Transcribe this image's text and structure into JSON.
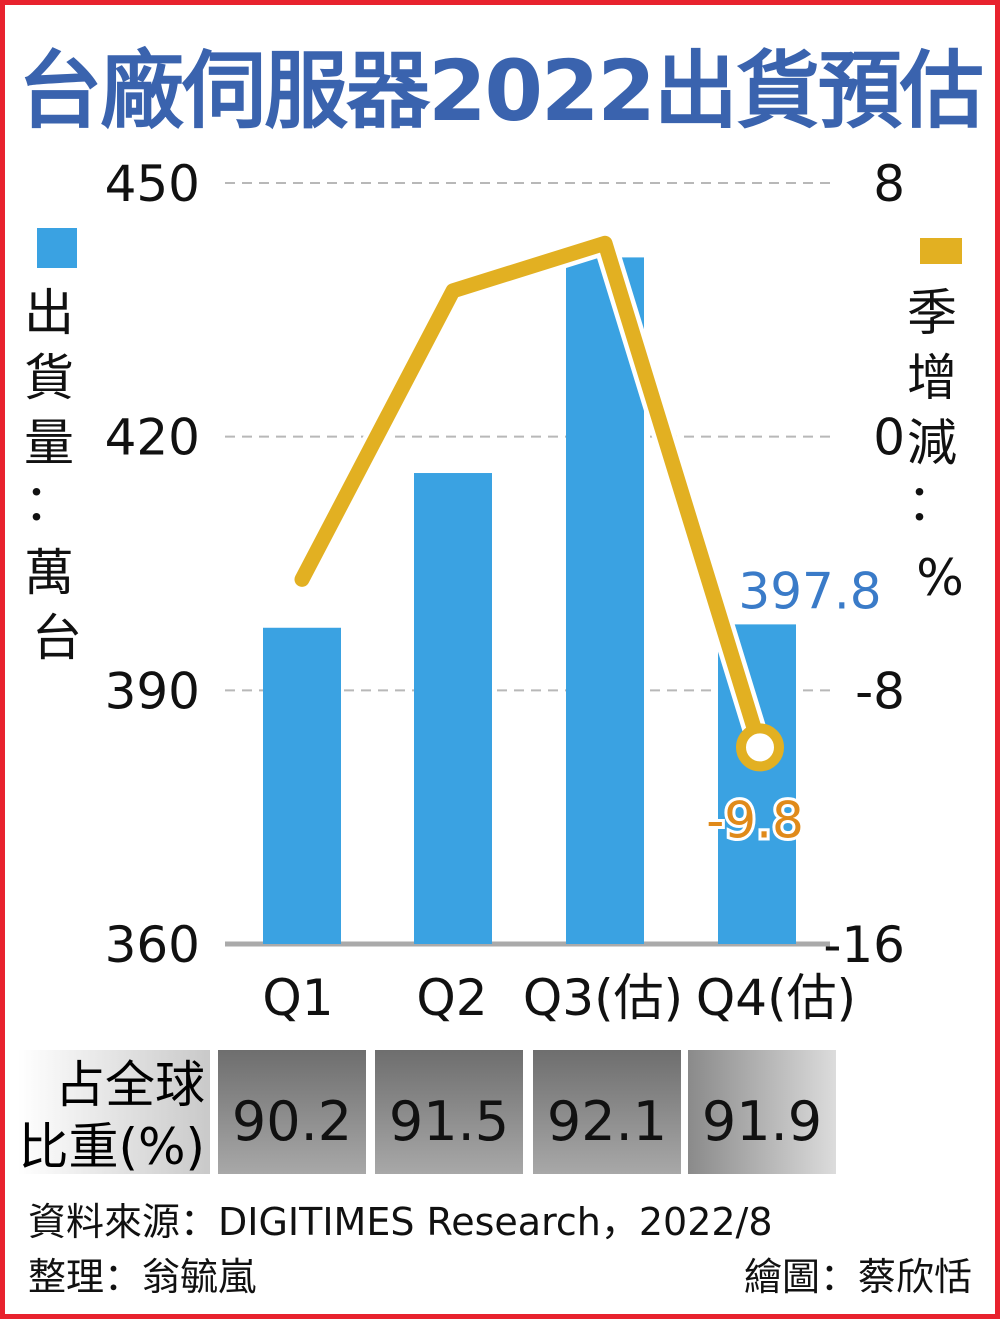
{
  "title": "台廠伺服器2022出貨預估",
  "left_axis_label": [
    "出",
    "貨",
    "量",
    "：",
    "萬",
    "台"
  ],
  "right_axis_label": [
    "季",
    "增",
    "減",
    "：",
    "%"
  ],
  "share_label_line1": "占全球",
  "share_label_line2": "比重(%)",
  "share_values": [
    "90.2",
    "91.5",
    "92.1",
    "91.9"
  ],
  "source_line": "資料來源：DIGITIMES Research，2022/8",
  "editor": "整理：翁毓嵐",
  "illustrator": "繪圖：蔡欣恬",
  "colors": {
    "frame": "#e8222e",
    "title": "#3a63ae",
    "bar": "#3aa2e2",
    "line": "#e2b022",
    "grid": "#b8b8b8",
    "label_blue": "#3a7bc8",
    "label_orange": "#e08a1a"
  },
  "chart_data": {
    "type": "bar+line",
    "categories": [
      "Q1",
      "Q2",
      "Q3(估)",
      "Q4(估)"
    ],
    "bar_series": {
      "values": [
        397.4,
        415.7,
        441.2,
        397.8
      ]
    },
    "line_series": {
      "values": [
        -4.5,
        4.6,
        6.1,
        -9.8
      ]
    },
    "y_left": {
      "label": "出貨量：萬台",
      "range": [
        360,
        450
      ],
      "ticks": [
        "360",
        "390",
        "420",
        "450"
      ]
    },
    "y_right": {
      "label": "季增減：%",
      "range": [
        -16,
        8
      ],
      "ticks": [
        "-16",
        "-8",
        "0",
        "8"
      ]
    },
    "annotations": {
      "bar_value": "397.8",
      "line_value": "-9.8"
    },
    "gridlines": true,
    "legend_position": "top-left and top-right"
  }
}
